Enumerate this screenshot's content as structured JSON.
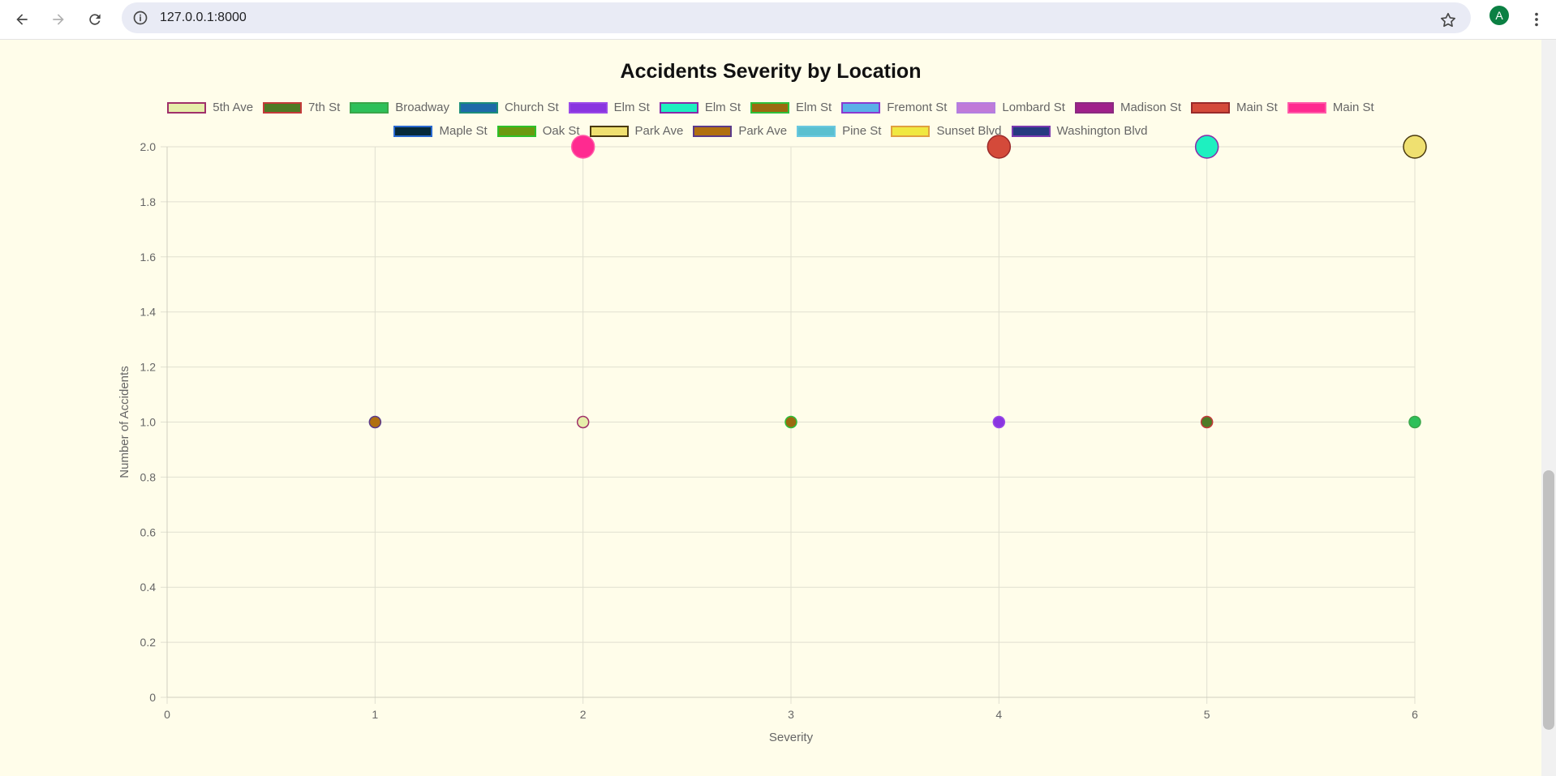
{
  "browser": {
    "url": "127.0.0.1:8000",
    "avatar_letter": "A"
  },
  "chart_data": {
    "type": "bubble",
    "title": "Accidents Severity by Location",
    "xlabel": "Severity",
    "ylabel": "Number of Accidents",
    "xlim": [
      0,
      6
    ],
    "ylim": [
      0,
      2
    ],
    "x_ticks": [
      "0",
      "1",
      "2",
      "3",
      "4",
      "5",
      "6"
    ],
    "y_ticks": [
      "0",
      "0.2",
      "0.4",
      "0.6",
      "0.8",
      "1.0",
      "1.2",
      "1.4",
      "1.6",
      "1.8",
      "2.0"
    ],
    "grid": true,
    "legend_position": "top",
    "series": [
      {
        "name": "5th Ave",
        "fill": "#e6eeaa",
        "border": "#a0306a",
        "points": [
          {
            "x": 2,
            "y": 1
          }
        ]
      },
      {
        "name": "7th St",
        "fill": "#4e7a25",
        "border": "#c43a3a",
        "points": [
          {
            "x": 5,
            "y": 1
          }
        ]
      },
      {
        "name": "Broadway",
        "fill": "#2ec05a",
        "border": "#3aa64a",
        "points": [
          {
            "x": 6,
            "y": 1
          }
        ]
      },
      {
        "name": "Church St",
        "fill": "#1e6aa8",
        "border": "#1d8d7a",
        "points": []
      },
      {
        "name": "Elm St",
        "fill": "#8a35e0",
        "border": "#9a4ae8",
        "points": [
          {
            "x": 4,
            "y": 1
          }
        ]
      },
      {
        "name": "Elm St",
        "fill": "#1ef0c0",
        "border": "#8a2aa8",
        "points": [
          {
            "x": 5,
            "y": 2
          }
        ]
      },
      {
        "name": "Elm St",
        "fill": "#9a6a10",
        "border": "#2ec03a",
        "points": [
          {
            "x": 3,
            "y": 1
          }
        ]
      },
      {
        "name": "Fremont St",
        "fill": "#5ab0e8",
        "border": "#8a3ad0",
        "points": []
      },
      {
        "name": "Lombard St",
        "fill": "#c07ad8",
        "border": "#b37fe0",
        "points": []
      },
      {
        "name": "Madison St",
        "fill": "#a0208a",
        "border": "#8a2a80",
        "points": []
      },
      {
        "name": "Main St",
        "fill": "#d44a3a",
        "border": "#9a2a2a",
        "points": [
          {
            "x": 4,
            "y": 2
          }
        ]
      },
      {
        "name": "Main St",
        "fill": "#ff2a90",
        "border": "#ff5aa8",
        "points": [
          {
            "x": 2,
            "y": 2
          }
        ]
      },
      {
        "name": "Maple St",
        "fill": "#062a3a",
        "border": "#2a6ad0",
        "points": []
      },
      {
        "name": "Oak St",
        "fill": "#6a9a10",
        "border": "#2ec02a",
        "points": []
      },
      {
        "name": "Park Ave",
        "fill": "#efe070",
        "border": "#4a3a10",
        "points": [
          {
            "x": 6,
            "y": 2
          }
        ]
      },
      {
        "name": "Park Ave",
        "fill": "#b07010",
        "border": "#5a3a8a",
        "points": [
          {
            "x": 1,
            "y": 1
          }
        ]
      },
      {
        "name": "Pine St",
        "fill": "#5ac0d0",
        "border": "#6ac8e0",
        "points": []
      },
      {
        "name": "Sunset Blvd",
        "fill": "#f0e840",
        "border": "#e0a040",
        "points": []
      },
      {
        "name": "Washington Blvd",
        "fill": "#263a80",
        "border": "#7a3ab0",
        "points": []
      }
    ]
  }
}
